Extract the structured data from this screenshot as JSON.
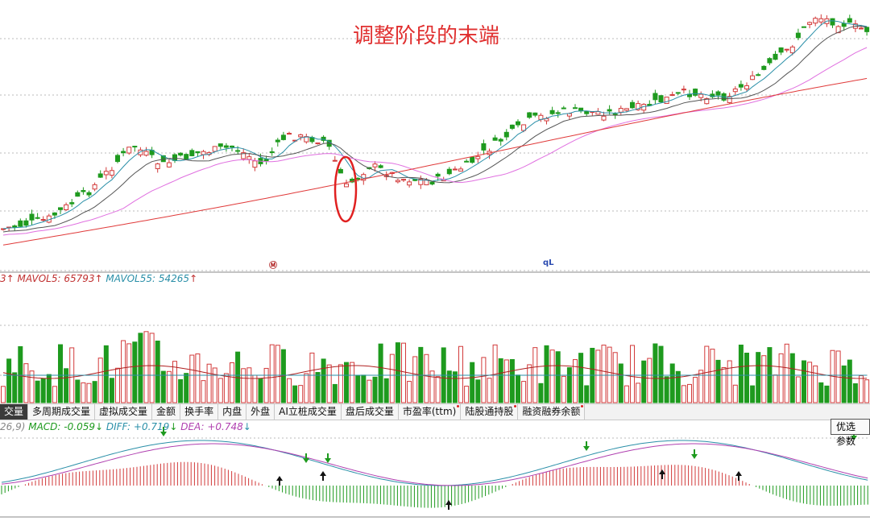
{
  "annotation": {
    "headline": "调整阶段的末端"
  },
  "price_markers": {
    "left": "Ⓜ",
    "right": "qL"
  },
  "volume_legend": {
    "prefix": "3",
    "ma5_label": "MAVOL5:",
    "ma5_value": "65793",
    "ma55_label": "MAVOL55:",
    "ma55_value": "54265",
    "arrow": "↑"
  },
  "tabs": [
    {
      "label": "交量",
      "active": true
    },
    {
      "label": "多周期成交量"
    },
    {
      "label": "虚拟成交量"
    },
    {
      "label": "金额"
    },
    {
      "label": "换手率"
    },
    {
      "label": "内盘"
    },
    {
      "label": "外盘"
    },
    {
      "label": "AI立桩成交量",
      "italic_prefix": "AI"
    },
    {
      "label": "盘后成交量"
    },
    {
      "label": "市盈率(ttm)",
      "dot": true
    },
    {
      "label": "陆股通持股",
      "dot": true
    },
    {
      "label": "融资融券余额",
      "dot": true
    }
  ],
  "macd_legend": {
    "prefix": "26,9)",
    "macd_label": "MACD:",
    "macd_value": "-0.059",
    "diff_label": "DIFF:",
    "diff_value": "+0.719",
    "dea_label": "DEA:",
    "dea_value": "+0.748",
    "arrow": "↓"
  },
  "option_button": {
    "label": "优选参数"
  },
  "colors": {
    "up": "#d23a3a",
    "down": "#1e9a1e",
    "ma_long": "#e03a3a",
    "ma_mid": "#e070e0",
    "ma_short": "#2a8fa8",
    "grid": "#bbbbbb",
    "annotation": "#e03030"
  },
  "chart_data": {
    "type": "candlestick",
    "panels": [
      "price",
      "volume",
      "macd"
    ],
    "notes": "K-line with moving averages, volume bars with MAVOL lines, MACD histogram with DIFF/DEA",
    "macd": {
      "MACD": -0.059,
      "DIFF": 0.719,
      "DEA": 0.748
    },
    "volume": {
      "MAVOL5": 65793,
      "MAVOL55": 54265
    }
  }
}
